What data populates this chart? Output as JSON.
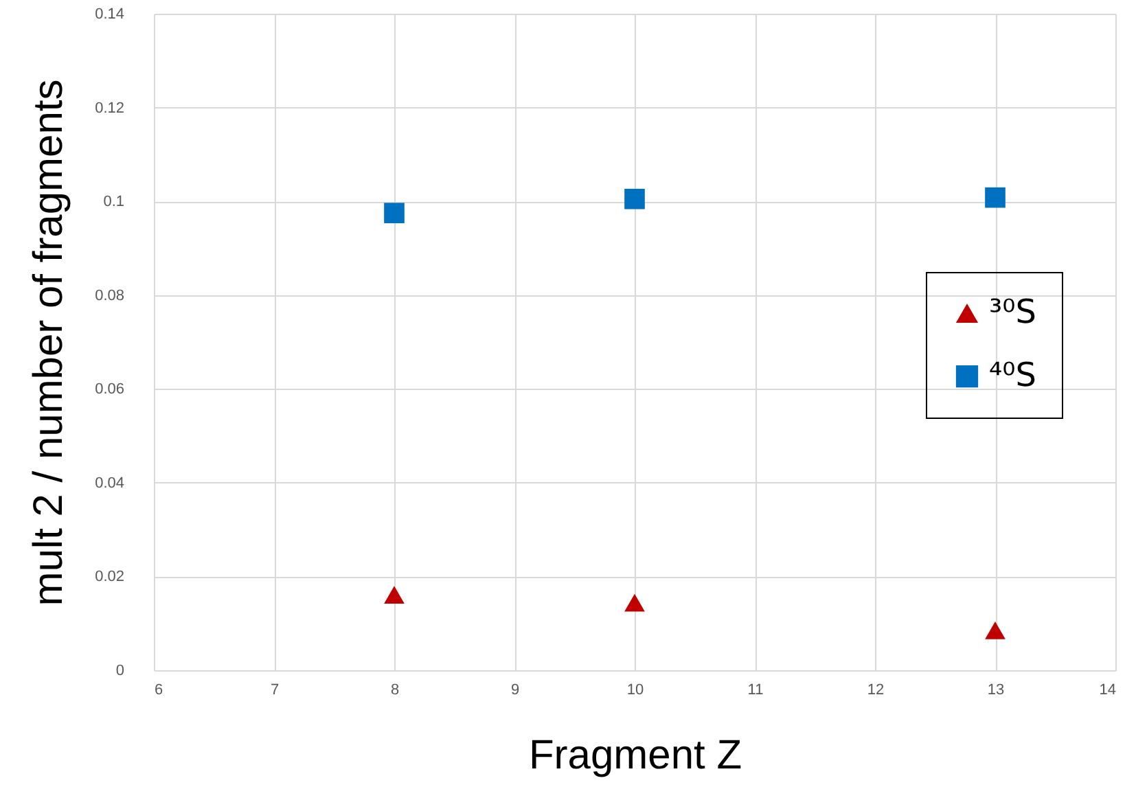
{
  "chart_data": {
    "type": "scatter",
    "xlabel": "Fragment  Z",
    "ylabel": "mult 2 / number of fragments",
    "x": [
      8,
      10,
      13
    ],
    "series": [
      {
        "name": "³⁰S",
        "color": "#c00000",
        "marker": "triangle",
        "values": [
          0.0161,
          0.0144,
          0.0085
        ]
      },
      {
        "name": "⁴⁰S",
        "color": "#0070c0",
        "marker": "square",
        "values": [
          0.0975,
          0.1005,
          0.1008
        ]
      }
    ],
    "xlim": [
      6,
      14
    ],
    "xticks": [
      6,
      7,
      8,
      9,
      10,
      11,
      12,
      13,
      14
    ],
    "ylim": [
      0,
      0.14
    ],
    "yticks": [
      0,
      0.02,
      0.04,
      0.06,
      0.08,
      0.1,
      0.12,
      0.14
    ],
    "grid": true,
    "legend": "right"
  }
}
